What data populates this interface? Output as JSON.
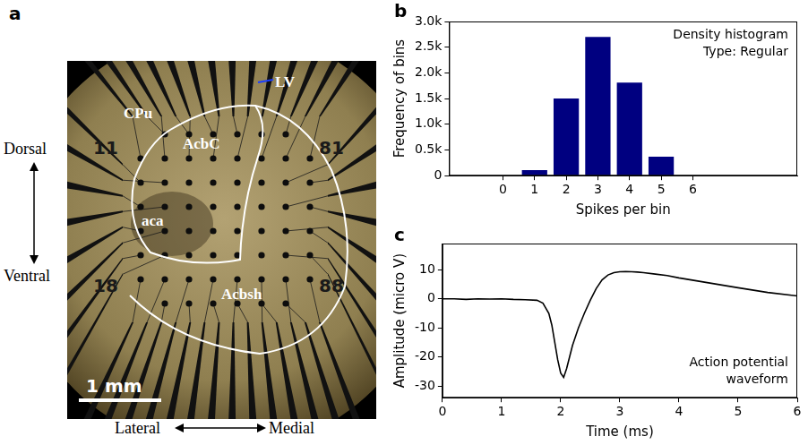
{
  "chart_data": [
    {
      "panel_label": "b",
      "type": "bar",
      "x": [
        0,
        1,
        2,
        3,
        4,
        5,
        6
      ],
      "values": [
        0,
        110,
        1500,
        2700,
        1810,
        370,
        0
      ],
      "color": "#000080",
      "xlabel": "Spikes per bin",
      "ylabel": "Frequency of bins",
      "xlim": [
        -1.7,
        9.3
      ],
      "xticks": [
        0,
        1,
        2,
        3,
        4,
        5,
        6
      ],
      "ylim": [
        0,
        3000
      ],
      "yticks": [
        0,
        {
          "value": 500,
          "label": "0.5k"
        },
        {
          "value": 1000,
          "label": "1.0k"
        },
        {
          "value": 1500,
          "label": "1.5k"
        },
        {
          "value": 2000,
          "label": "2.0k"
        },
        {
          "value": 2500,
          "label": "2.5k"
        },
        {
          "value": 3000,
          "label": "3.0k"
        }
      ],
      "annotation": [
        "Density histogram",
        "Type: Regular"
      ],
      "grid": false
    },
    {
      "panel_label": "c",
      "type": "line",
      "x": [
        0,
        0.2,
        0.4,
        0.6,
        0.8,
        1.0,
        1.2,
        1.4,
        1.6,
        1.7,
        1.8,
        1.85,
        1.9,
        1.95,
        2.0,
        2.05,
        2.1,
        2.15,
        2.2,
        2.3,
        2.4,
        2.5,
        2.6,
        2.7,
        2.8,
        2.9,
        3.0,
        3.1,
        3.2,
        3.3,
        3.4,
        3.6,
        3.8,
        4.0,
        4.5,
        5.0,
        5.5,
        6.0
      ],
      "values": [
        0,
        0,
        -0.2,
        0,
        -0.1,
        0,
        -0.2,
        -0.3,
        -0.5,
        -1.5,
        -5,
        -9,
        -15,
        -21,
        -25.5,
        -27,
        -24,
        -20,
        -16,
        -10,
        -5,
        -0.5,
        3.5,
        6.5,
        8.2,
        9,
        9.3,
        9.4,
        9.3,
        9.2,
        9,
        8.5,
        8,
        7.2,
        5.5,
        3.8,
        2.2,
        1.0
      ],
      "color": "#000000",
      "xlabel": "Time (ms)",
      "ylabel": "Amplitude (micro V)",
      "xlim": [
        0,
        6
      ],
      "xticks": [
        0,
        1,
        2,
        3,
        4,
        5,
        6
      ],
      "ylim": [
        -34,
        19
      ],
      "yticks": [
        -30,
        -20,
        -10,
        0,
        10
      ],
      "annotation": [
        "Action potential",
        "waveform"
      ],
      "grid": false
    }
  ],
  "image_panel": {
    "panel_label": "a",
    "region_labels": [
      "CPu",
      "LV",
      "AcbC",
      "aca",
      "Acbsh"
    ],
    "electrode_labels": [
      "11",
      "81",
      "18",
      "88"
    ],
    "scale_bar": "1 mm",
    "directions": [
      "Dorsal",
      "Ventral",
      "Lateral",
      "Medial"
    ]
  }
}
